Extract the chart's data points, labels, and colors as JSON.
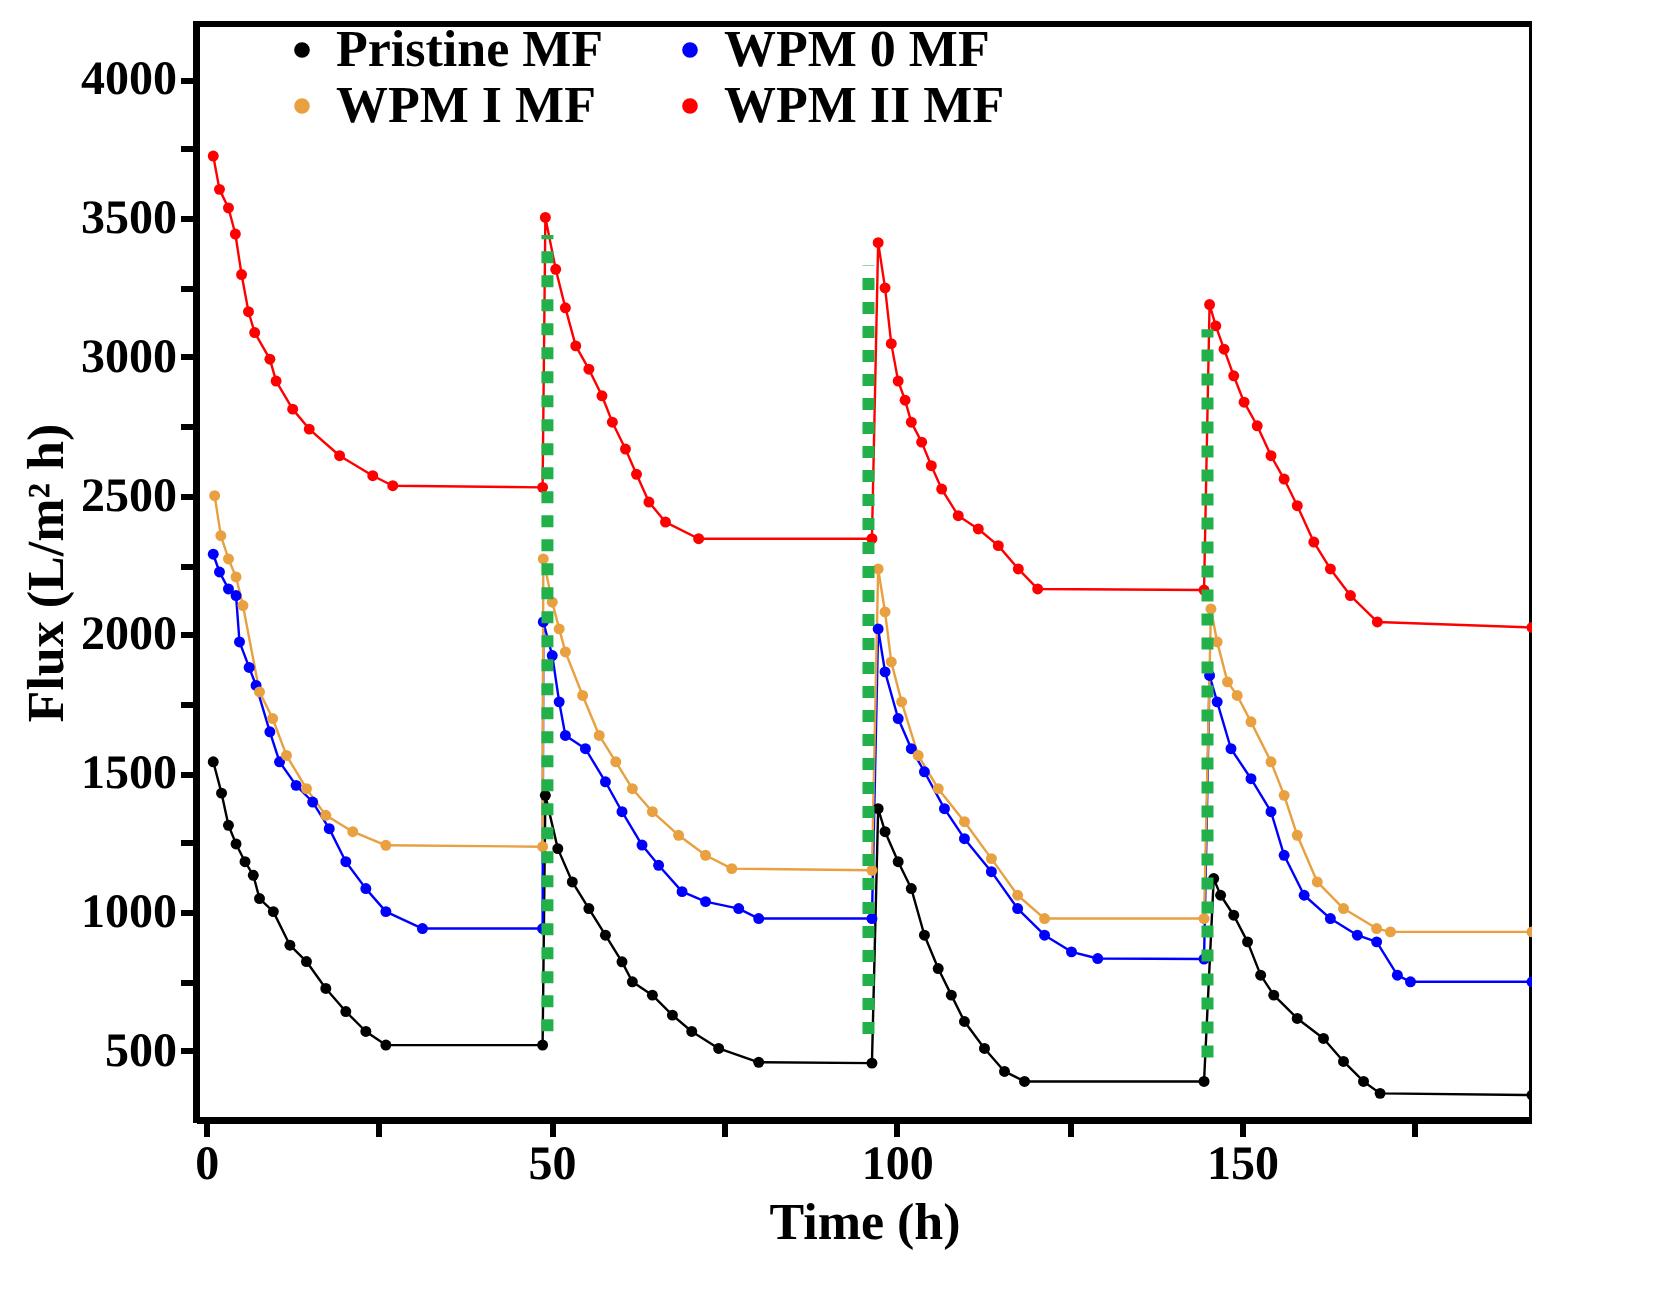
{
  "chart_data": {
    "type": "line",
    "xlabel": "Time (h)",
    "ylabel": "Flux (L/m² h)",
    "xlim": [
      -1.5,
      192
    ],
    "ylim": [
      250,
      4200
    ],
    "xticks": [
      0,
      {
        "value": 25,
        "label": null
      },
      50,
      {
        "value": 75,
        "label": null
      },
      100,
      {
        "value": 125,
        "label": null
      },
      150,
      {
        "value": 175,
        "label": null
      }
    ],
    "yticks": [
      500,
      {
        "value": 750,
        "label": null
      },
      1000,
      {
        "value": 1250,
        "label": null
      },
      1500,
      {
        "value": 1750,
        "label": null
      },
      2000,
      {
        "value": 2250,
        "label": null
      },
      2500,
      {
        "value": 2750,
        "label": null
      },
      3000,
      {
        "value": 3250,
        "label": null
      },
      3500,
      {
        "value": 3750,
        "label": null
      },
      4000
    ],
    "grid": false,
    "legend": "top",
    "marker": "circle",
    "line_style": "solid",
    "series": [
      {
        "name": "Pristine MF",
        "color": "#000000",
        "x": [
          1.0,
          2.2,
          3.2,
          4.3,
          5.6,
          6.8,
          7.7,
          9.7,
          12.1,
          14.5,
          17.3,
          20.2,
          23.1,
          26.0,
          48.7,
          49.1,
          50.9,
          53.0,
          55.4,
          57.8,
          60.2,
          61.7,
          64.6,
          67.5,
          70.3,
          74.2,
          80.0,
          96.4,
          97.3,
          98.3,
          100.2,
          102.1,
          104.0,
          106.0,
          107.9,
          109.8,
          112.7,
          115.6,
          118.5,
          144.5,
          145.9,
          146.9,
          148.8,
          150.8,
          152.7,
          154.6,
          158.0,
          161.8,
          164.7,
          167.6,
          170.0,
          192
        ],
        "values": [
          1541,
          1428,
          1312,
          1245,
          1181,
          1132,
          1048,
          1001,
          880,
          821,
          724,
          641,
          569,
          520,
          520,
          1420,
          1228,
          1108,
          1012,
          916,
          820,
          748,
          700,
          628,
          569,
          508,
          458,
          455,
          1372,
          1289,
          1181,
          1084,
          916,
          796,
          700,
          605,
          508,
          425,
          389,
          389,
          1120,
          1060,
          988,
          892,
          772,
          700,
          616,
          544,
          461,
          389,
          346,
          340
        ]
      },
      {
        "name": "WPM 0 MF",
        "color": "#0000ff",
        "x": [
          1.0,
          1.9,
          3.2,
          4.3,
          4.8,
          6.2,
          7.2,
          9.2,
          10.6,
          13.0,
          15.4,
          17.8,
          20.2,
          23.1,
          26.0,
          31.3,
          48.7,
          48.8,
          50.1,
          51.1,
          52.0,
          54.9,
          57.8,
          60.2,
          63.1,
          65.5,
          68.9,
          72.3,
          77.1,
          80.0,
          96.4,
          97.3,
          98.3,
          100.2,
          102.1,
          104.0,
          106.9,
          109.8,
          113.7,
          117.5,
          121.4,
          125.3,
          129.1,
          144.5,
          145.3,
          146.4,
          148.4,
          151.3,
          154.2,
          156.1,
          159.0,
          162.8,
          166.7,
          169.5,
          172.5,
          174.4,
          192
        ],
        "values": [
          2289,
          2225,
          2164,
          2140,
          1973,
          1881,
          1816,
          1649,
          1541,
          1456,
          1396,
          1300,
          1181,
          1084,
          1001,
          940,
          940,
          2045,
          1924,
          1757,
          1636,
          1588,
          1469,
          1361,
          1241,
          1168,
          1073,
          1037,
          1012,
          976,
          976,
          2020,
          1865,
          1697,
          1588,
          1505,
          1372,
          1264,
          1145,
          1012,
          916,
          856,
          832,
          830,
          1852,
          1757,
          1588,
          1480,
          1361,
          1204,
          1060,
          976,
          916,
          892,
          772,
          748,
          748
        ]
      },
      {
        "name": "WPM I MF",
        "color": "#e8a040",
        "x": [
          1.2,
          2.1,
          3.2,
          4.3,
          5.3,
          7.7,
          9.6,
          11.6,
          14.5,
          17.3,
          21.2,
          26.0,
          48.7,
          48.8,
          50.1,
          51.1,
          52.0,
          54.5,
          56.9,
          59.3,
          61.7,
          64.6,
          68.4,
          72.3,
          76.1,
          96.4,
          97.3,
          98.3,
          99.2,
          100.7,
          103.1,
          106.0,
          109.8,
          113.7,
          117.5,
          121.4,
          144.5,
          145.5,
          146.4,
          147.9,
          149.3,
          151.3,
          154.2,
          156.1,
          158.0,
          160.9,
          164.7,
          169.5,
          171.5,
          192
        ],
        "values": [
          2500,
          2356,
          2272,
          2207,
          2104,
          1793,
          1697,
          1564,
          1444,
          1348,
          1289,
          1240,
          1235,
          2272,
          2116,
          2020,
          1937,
          1780,
          1636,
          1541,
          1444,
          1361,
          1276,
          1204,
          1156,
          1150,
          2236,
          2081,
          1901,
          1757,
          1564,
          1444,
          1325,
          1192,
          1060,
          976,
          976,
          2092,
          1973,
          1829,
          1780,
          1685,
          1541,
          1420,
          1276,
          1108,
          1012,
          940,
          928,
          928
        ]
      },
      {
        "name": "WPM II MF",
        "color": "#ff0000",
        "x": [
          1.0,
          1.9,
          3.2,
          4.2,
          5.1,
          6.1,
          7.0,
          9.2,
          10.1,
          12.5,
          14.9,
          19.3,
          24.1,
          27.0,
          48.7,
          49.1,
          50.6,
          52.0,
          53.5,
          55.4,
          57.3,
          58.8,
          60.7,
          62.3,
          64.1,
          66.5,
          71.3,
          96.4,
          97.3,
          98.3,
          99.2,
          100.2,
          101.2,
          102.1,
          103.6,
          105.0,
          106.5,
          108.9,
          111.8,
          114.7,
          117.6,
          120.4,
          144.5,
          145.3,
          146.2,
          147.4,
          148.8,
          150.3,
          152.2,
          154.2,
          156.1,
          158.0,
          160.4,
          162.8,
          165.7,
          169.6,
          192
        ],
        "values": [
          3724,
          3604,
          3537,
          3443,
          3297,
          3163,
          3088,
          2992,
          2913,
          2812,
          2740,
          2644,
          2572,
          2536,
          2530,
          3503,
          3316,
          3177,
          3040,
          2956,
          2860,
          2765,
          2668,
          2577,
          2477,
          2405,
          2345,
          2345,
          3412,
          3249,
          3048,
          2913,
          2844,
          2765,
          2693,
          2608,
          2524,
          2428,
          2380,
          2320,
          2236,
          2164,
          2160,
          3189,
          3112,
          3028,
          2932,
          2837,
          2752,
          2644,
          2560,
          2464,
          2333,
          2236,
          2140,
          2045,
          2025
        ]
      },
      {
        "type": "line",
        "color": "#22b04b",
        "line_style": "dotted",
        "marker": "none",
        "x": [
          49.4,
          49.4
        ],
        "values": [
          570,
          3440
        ]
      },
      {
        "type": "line",
        "color": "#22b04b",
        "line_style": "dotted",
        "marker": "none",
        "x": [
          95.9,
          95.9
        ],
        "values": [
          560,
          3330
        ]
      },
      {
        "type": "line",
        "color": "#22b04b",
        "line_style": "dotted",
        "marker": "none",
        "x": [
          145.0,
          145.0
        ],
        "values": [
          475,
          3100
        ]
      }
    ]
  }
}
